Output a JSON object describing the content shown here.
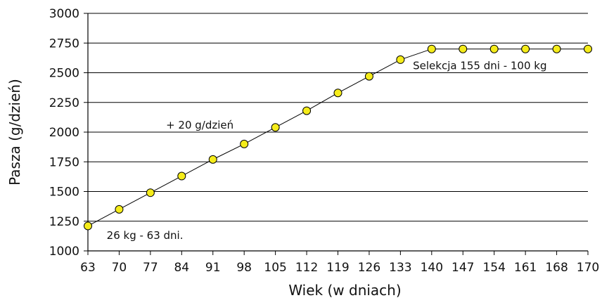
{
  "chart_data": {
    "type": "line",
    "title": "",
    "xlabel": "Wiek (w dniach)",
    "ylabel": "Pasza (g/dzień)",
    "x": [
      63,
      70,
      77,
      84,
      91,
      98,
      105,
      112,
      119,
      126,
      133,
      140,
      147,
      154,
      161,
      168,
      170
    ],
    "x_tick_labels": [
      "63",
      "70",
      "77",
      "84",
      "91",
      "98",
      "105",
      "112",
      "119",
      "126",
      "133",
      "140",
      "147",
      "154",
      "161",
      "168",
      "170"
    ],
    "y_tick_values": [
      1000,
      1250,
      1500,
      1750,
      2000,
      2250,
      2500,
      2750,
      3000
    ],
    "y_tick_labels": [
      "1000",
      "1250",
      "1500",
      "1750",
      "2000",
      "2250",
      "2500",
      "2750",
      "3000"
    ],
    "ylim": [
      1000,
      3000
    ],
    "grid": "horizontal",
    "series": [
      {
        "values": [
          1210,
          1350,
          1490,
          1630,
          1770,
          1900,
          2040,
          2180,
          2330,
          2470,
          2610,
          2700,
          2700,
          2700,
          2700,
          2700,
          2700
        ],
        "line_color": "#000000",
        "marker_color": "#f5ec1a"
      }
    ],
    "annotations": [
      {
        "text": "26 kg - 63 dni.",
        "x_index": 0.6,
        "y": 1100
      },
      {
        "text": "+ 20 g/dzień",
        "x_index": 2.5,
        "y": 2030
      },
      {
        "text": "Selekcja 155 dni - 100 kg",
        "x_index": 10.4,
        "y": 2530
      }
    ]
  }
}
